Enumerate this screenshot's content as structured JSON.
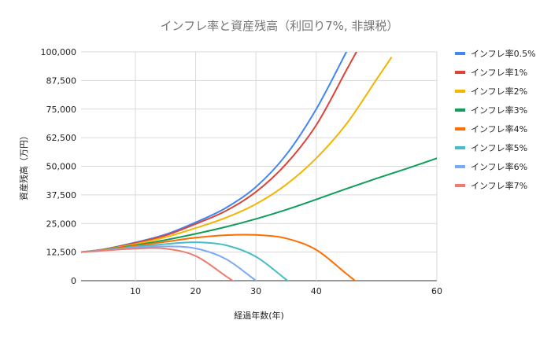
{
  "chart_data": {
    "type": "line",
    "title": "インフレ率と資産残高（利回り7%, 非課税）",
    "xlabel": "経過年数(年)",
    "ylabel": "資産残高（万円）",
    "xlim": [
      1,
      60
    ],
    "ylim": [
      0,
      100000
    ],
    "x_ticks": [
      10,
      20,
      30,
      40,
      60
    ],
    "y_ticks": [
      0,
      12500,
      25000,
      37500,
      50000,
      62500,
      75000,
      87500,
      100000
    ],
    "x_tick_labels": [
      "10",
      "20",
      "30",
      "40",
      "60"
    ],
    "y_tick_labels": [
      "0",
      "12,500",
      "25,000",
      "37,500",
      "50,000",
      "62,500",
      "75,000",
      "87,500",
      "100,000"
    ],
    "grid": true,
    "legend_position": "right",
    "x": [
      1,
      5,
      10,
      15,
      20,
      25,
      30,
      35,
      40,
      45,
      50,
      55,
      60
    ],
    "series": [
      {
        "name": "インフレ率0.5%",
        "color": "#4285F4",
        "values": [
          12500,
          13850,
          16700,
          20200,
          25500,
          31800,
          41000,
          55000,
          75000,
          100000,
          null,
          null,
          null
        ]
      },
      {
        "name": "インフレ率1%",
        "color": "#DB4437",
        "values": [
          12500,
          13800,
          16500,
          19800,
          24800,
          30500,
          38800,
          51000,
          68000,
          92000,
          null,
          null,
          null
        ]
      },
      {
        "name": "インフレ率2%",
        "color": "#F4B400",
        "values": [
          12500,
          13700,
          16000,
          19000,
          23000,
          27500,
          33500,
          42000,
          53500,
          68500,
          88000,
          null,
          null
        ]
      },
      {
        "name": "インフレ率3%",
        "color": "#0F9D58",
        "values": [
          12500,
          13600,
          15500,
          17800,
          20500,
          23500,
          27000,
          31000,
          35500,
          40200,
          44700,
          49000,
          53500
        ]
      },
      {
        "name": "インフレ率4%",
        "color": "#FF6D00",
        "values": [
          12500,
          13500,
          15200,
          17000,
          18800,
          19900,
          20000,
          18500,
          13500,
          3000,
          null,
          null,
          null
        ]
      },
      {
        "name": "インフレ率5%",
        "color": "#46BDC6",
        "values": [
          12500,
          13400,
          14800,
          16000,
          16800,
          15500,
          10500,
          500,
          null,
          null,
          null,
          null,
          null
        ]
      },
      {
        "name": "インフレ率6%",
        "color": "#7BAAF7",
        "values": [
          12500,
          13300,
          14500,
          15000,
          14100,
          9500,
          0,
          null,
          null,
          null,
          null,
          null,
          null
        ]
      },
      {
        "name": "インフレ率7%",
        "color": "#F07B72",
        "values": [
          12500,
          13200,
          14000,
          14000,
          10800,
          2000,
          null,
          null,
          null,
          null,
          null,
          null,
          null
        ]
      }
    ]
  }
}
